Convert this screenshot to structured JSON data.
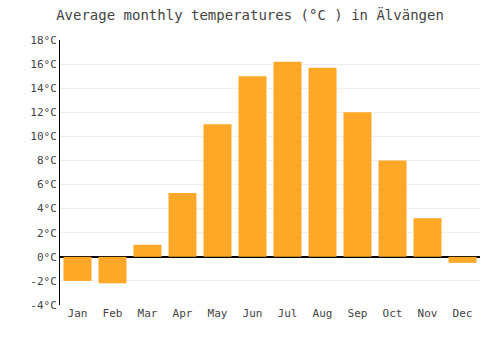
{
  "chart_data": {
    "type": "bar",
    "title": "Average monthly temperatures (°C ) in Älvängen",
    "categories": [
      "Jan",
      "Feb",
      "Mar",
      "Apr",
      "May",
      "Jun",
      "Jul",
      "Aug",
      "Sep",
      "Oct",
      "Nov",
      "Dec"
    ],
    "values": [
      -2.0,
      -2.2,
      1.0,
      5.3,
      11.0,
      15.0,
      16.2,
      15.7,
      12.0,
      8.0,
      3.2,
      -0.5
    ],
    "color": "#FFA726",
    "ylim": [
      -4,
      18
    ],
    "yticks": [
      {
        "value": -4,
        "label": "-4°C"
      },
      {
        "value": -2,
        "label": "-2°C"
      },
      {
        "value": 0,
        "label": "0°C"
      },
      {
        "value": 2,
        "label": "2°C"
      },
      {
        "value": 4,
        "label": "4°C"
      },
      {
        "value": 6,
        "label": "6°C"
      },
      {
        "value": 8,
        "label": "8°C"
      },
      {
        "value": 10,
        "label": "10°C"
      },
      {
        "value": 12,
        "label": "12°C"
      },
      {
        "value": 14,
        "label": "14°C"
      },
      {
        "value": 16,
        "label": "16°C"
      },
      {
        "value": 18,
        "label": "18°C"
      }
    ],
    "grid": true
  }
}
